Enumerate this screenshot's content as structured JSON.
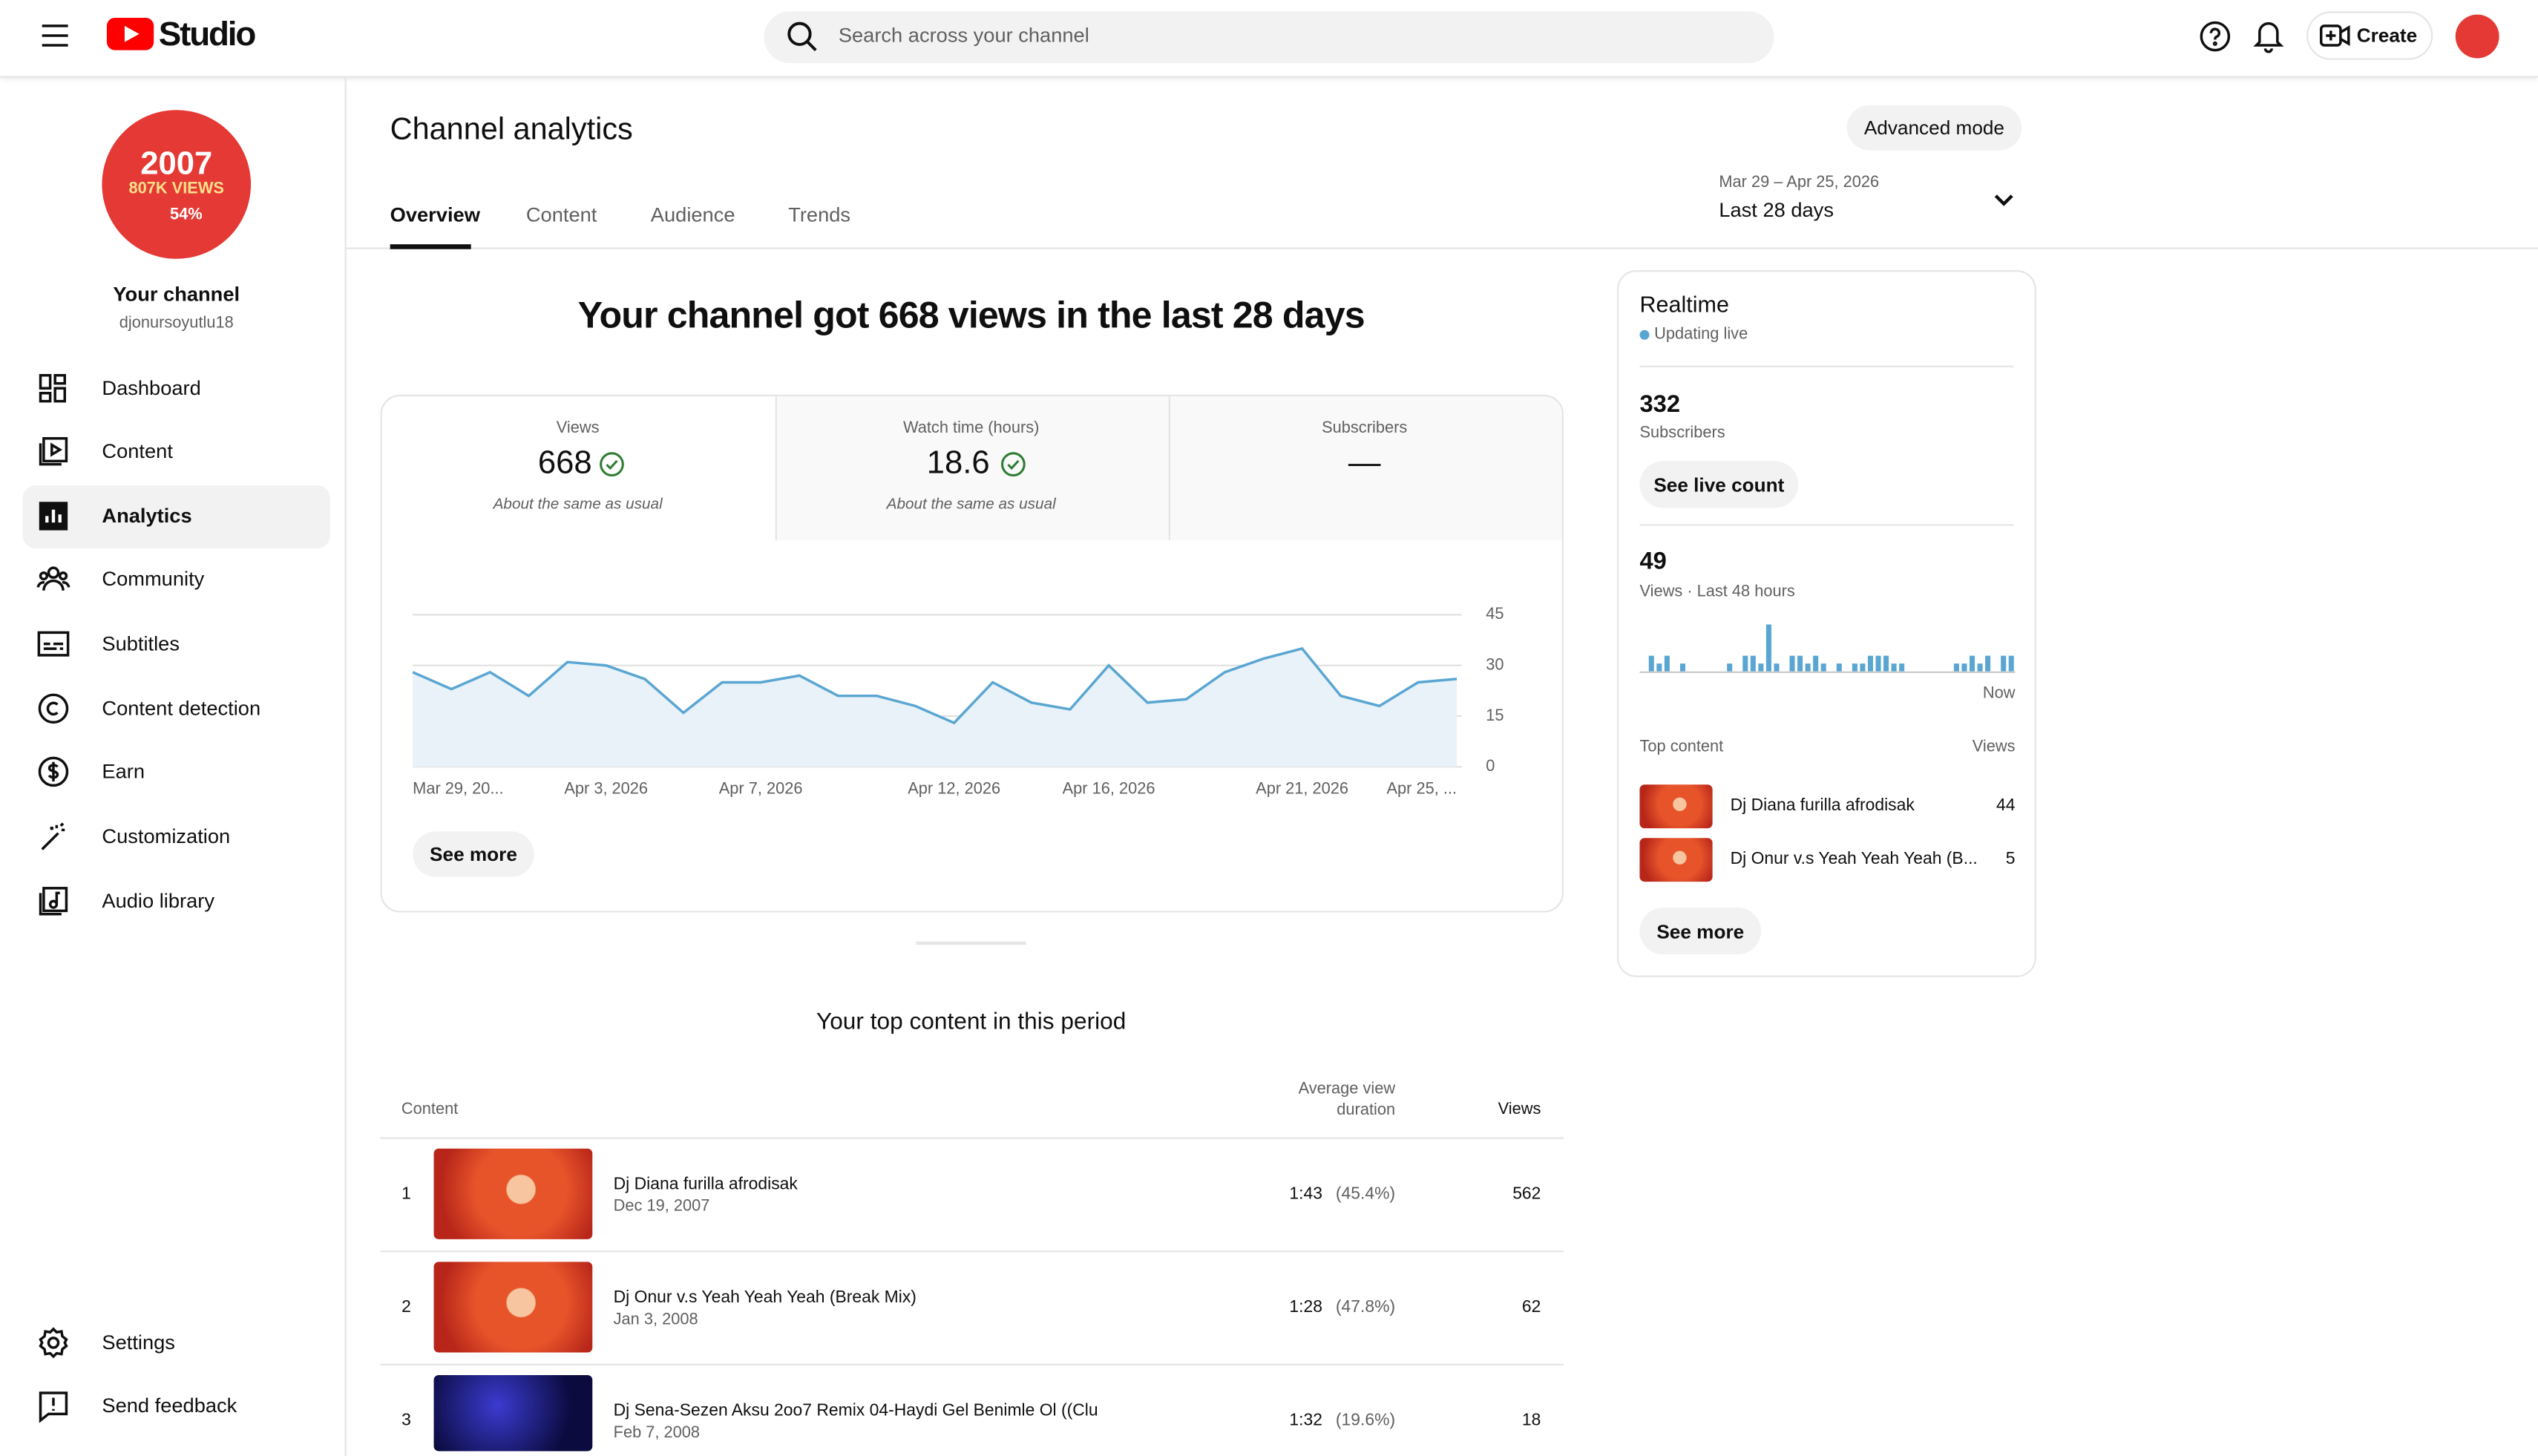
{
  "header": {
    "logo": "Studio",
    "search_placeholder": "Search across your channel",
    "create": "Create"
  },
  "sidebar": {
    "avatar_lines": [
      "2007",
      "807K VIEWS",
      "54%"
    ],
    "channel_title": "Your channel",
    "handle": "djonursoyutlu18",
    "nav": [
      "Dashboard",
      "Content",
      "Analytics",
      "Community",
      "Subtitles",
      "Content detection",
      "Earn",
      "Customization",
      "Audio library"
    ],
    "bottom_nav": [
      "Settings",
      "Send feedback"
    ]
  },
  "page": {
    "title": "Channel analytics",
    "advanced_mode": "Advanced mode",
    "date_range": "Mar 29 – Apr 25, 2026",
    "period": "Last 28 days",
    "tabs": [
      "Overview",
      "Content",
      "Audience",
      "Trends"
    ]
  },
  "overview": {
    "headline": "Your channel got 668 views in the last 28 days",
    "metrics": [
      {
        "label": "Views",
        "value": 668,
        "note": "About the same as usual"
      },
      {
        "label": "Watch time (hours)",
        "value": 18.6,
        "note": "About the same as usual"
      },
      {
        "label": "Subscribers",
        "value": "—"
      }
    ],
    "see_more": "See more"
  },
  "chart_data": {
    "type": "line",
    "categories": [
      "Mar 29, 20...",
      null,
      null,
      null,
      null,
      "Apr 3, 2026",
      null,
      null,
      null,
      "Apr 7, 2026",
      null,
      null,
      null,
      null,
      "Apr 12, 2026",
      null,
      null,
      null,
      "Apr 16, 2026",
      null,
      null,
      null,
      null,
      "Apr 21, 2026",
      null,
      null,
      null,
      "Apr 25, ..."
    ],
    "values": [
      28,
      23,
      28,
      21,
      31,
      30,
      26,
      16,
      25,
      25,
      27,
      21,
      21,
      18,
      13,
      25,
      19,
      17,
      30,
      19,
      20,
      28,
      32,
      35,
      21,
      18,
      25,
      26
    ],
    "color": "#5aa6d2",
    "ylim": [
      0,
      45
    ],
    "yticks": [
      0,
      15,
      30,
      45
    ],
    "grid": true
  },
  "realtime": {
    "title": "Realtime",
    "status": "Updating live",
    "subscribers": 332,
    "subscribers_label": "Subscribers",
    "see_live_count": "See live count",
    "views": 49,
    "views_label": "Views · Last 48 hours",
    "hourly_views": [
      0,
      2,
      1,
      2,
      0,
      1,
      0,
      0,
      0,
      0,
      0,
      1,
      0,
      2,
      2,
      1,
      6,
      1,
      0,
      2,
      2,
      1,
      2,
      1,
      0,
      1,
      0,
      1,
      1,
      2,
      2,
      2,
      1,
      1,
      0,
      0,
      0,
      0,
      0,
      0,
      1,
      1,
      2,
      1,
      2,
      0,
      2,
      2
    ],
    "hourly_color": "#5aa6d2",
    "now_label": "Now",
    "top_content_label": "Top content",
    "views_column": "Views",
    "top_content": [
      {
        "title": "Dj Diana furilla afrodisak",
        "views": 44
      },
      {
        "title": "Dj Onur v.s Yeah Yeah Yeah (B...",
        "views": 5
      }
    ],
    "see_more": "See more"
  },
  "top_content": {
    "title": "Your top content in this period",
    "columns": [
      "Content",
      "Average view duration",
      "Views"
    ],
    "rows": [
      {
        "rank": 1,
        "title": "Dj Diana furilla afrodisak",
        "date": "Dec 19, 2007",
        "duration": "1:43",
        "percent": "(45.4%)",
        "views": 562
      },
      {
        "rank": 2,
        "title": "Dj Onur v.s Yeah Yeah Yeah (Break Mix)",
        "date": "Jan 3, 2008",
        "duration": "1:28",
        "percent": "(47.8%)",
        "views": 62
      },
      {
        "rank": 3,
        "title": "Dj Sena-Sezen Aksu 2oo7 Remix 04-Haydi Gel Benimle Ol ((Clu",
        "date": "Feb 7, 2008",
        "duration": "1:32",
        "percent": "(19.6%)",
        "views": 18
      }
    ]
  }
}
